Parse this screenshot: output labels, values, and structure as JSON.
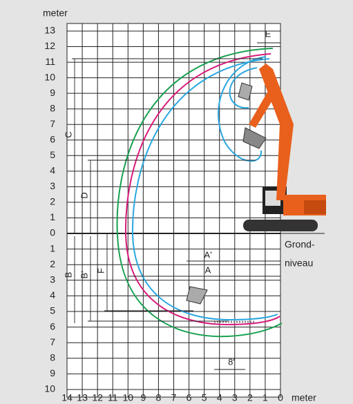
{
  "axes": {
    "y_unit": "meter",
    "x_unit": "meter",
    "y_above": [
      13,
      12,
      11,
      10,
      9,
      8,
      7,
      6,
      5,
      4,
      3,
      2,
      1,
      0
    ],
    "y_below": [
      1,
      2,
      3,
      4,
      5,
      6,
      7,
      8,
      9,
      10
    ],
    "x": [
      14,
      13,
      12,
      11,
      10,
      9,
      8,
      7,
      6,
      5,
      4,
      3,
      2,
      1,
      0
    ]
  },
  "dimensions": {
    "C": "C",
    "D": "D",
    "B": "B",
    "B_prime": "B'",
    "F": "F",
    "A_prime": "A'",
    "A": "A",
    "E": "E",
    "eight": "8'"
  },
  "ground": {
    "line1": "Grond-",
    "line2": "niveau"
  }
}
